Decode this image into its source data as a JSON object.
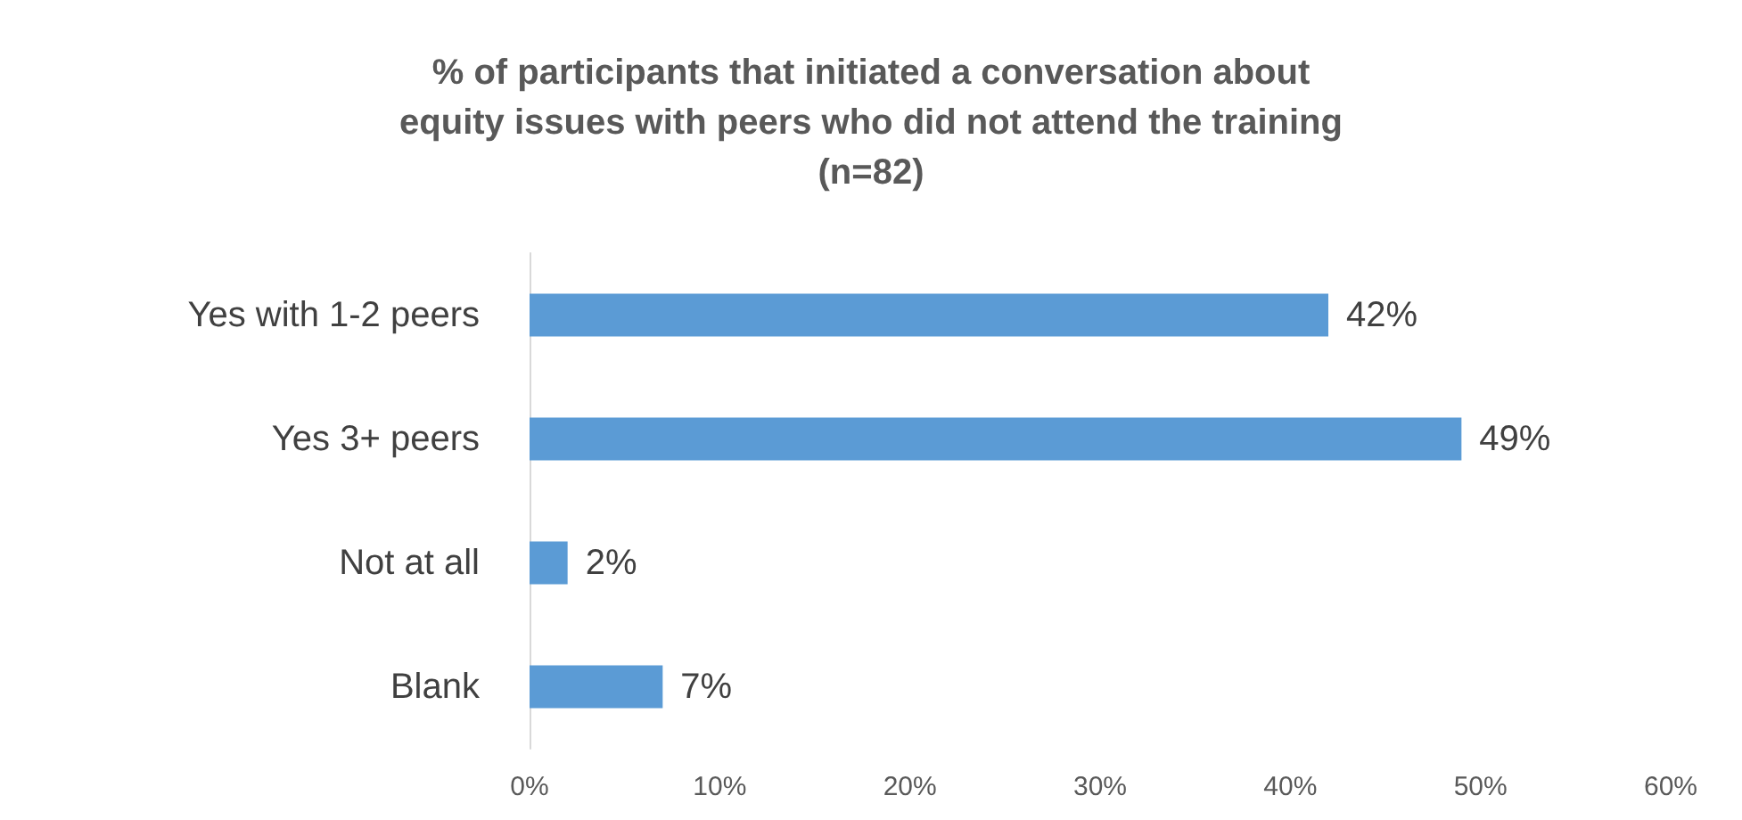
{
  "chart_data": {
    "type": "bar",
    "orientation": "horizontal",
    "title": "% of participants that initiated a conversation about\nequity issues with peers who did not attend the training\n(n=82)",
    "categories": [
      "Yes with 1-2 peers",
      "Yes 3+ peers",
      "Not at all",
      "Blank"
    ],
    "values": [
      42,
      49,
      2,
      7
    ],
    "value_labels": [
      "42%",
      "49%",
      "2%",
      "7%"
    ],
    "color": "#5b9bd5",
    "xlim": [
      0,
      60
    ],
    "xticks": [
      {
        "value": 0,
        "label": "0%"
      },
      {
        "value": 10,
        "label": "10%"
      },
      {
        "value": 20,
        "label": "20%"
      },
      {
        "value": 30,
        "label": "30%"
      },
      {
        "value": 40,
        "label": "40%"
      },
      {
        "value": 50,
        "label": "50%"
      },
      {
        "value": 60,
        "label": "60%"
      }
    ],
    "grid": false
  }
}
